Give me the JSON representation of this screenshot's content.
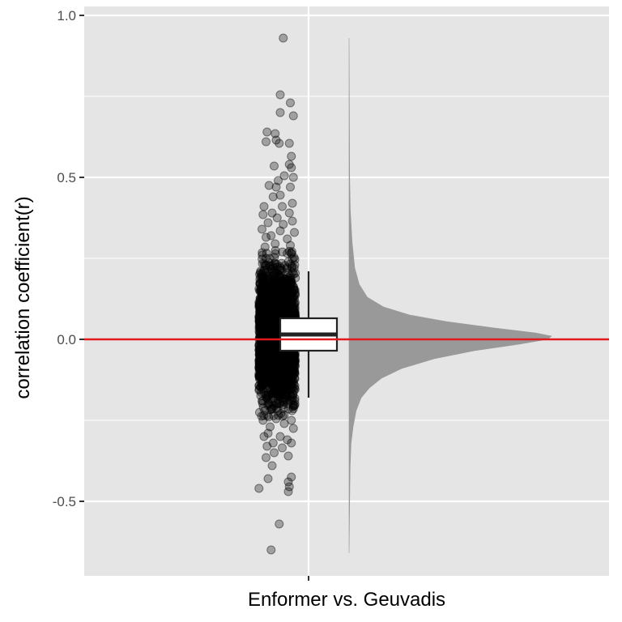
{
  "chart_data": {
    "type": "raincloud",
    "title": "",
    "xlabel": "Enformer vs. Geuvadis",
    "ylabel": "correlation coefficient(r)",
    "categories": [
      "Enformer vs. Geuvadis"
    ],
    "ylim": [
      -0.73,
      1.0
    ],
    "y_ticks": [
      -0.5,
      0.0,
      0.5,
      1.0
    ],
    "y_tick_labels": [
      "-0.5",
      "0.0",
      "0.5",
      "1.0"
    ],
    "grid": true,
    "legend": "none",
    "reference_line": {
      "y": 0.0,
      "color": "#e31a1c"
    },
    "boxplot": {
      "whisker_low": -0.18,
      "q1": -0.035,
      "median": 0.015,
      "q3": 0.065,
      "whisker_high": 0.21
    },
    "density_profile": [
      {
        "y": -0.66,
        "d": 0.0
      },
      {
        "y": -0.5,
        "d": 0.003
      },
      {
        "y": -0.4,
        "d": 0.005
      },
      {
        "y": -0.32,
        "d": 0.01
      },
      {
        "y": -0.27,
        "d": 0.02
      },
      {
        "y": -0.22,
        "d": 0.035
      },
      {
        "y": -0.18,
        "d": 0.06
      },
      {
        "y": -0.15,
        "d": 0.1
      },
      {
        "y": -0.12,
        "d": 0.16
      },
      {
        "y": -0.09,
        "d": 0.26
      },
      {
        "y": -0.06,
        "d": 0.42
      },
      {
        "y": -0.035,
        "d": 0.62
      },
      {
        "y": -0.015,
        "d": 0.84
      },
      {
        "y": 0.0,
        "d": 0.98
      },
      {
        "y": 0.01,
        "d": 1.0
      },
      {
        "y": 0.02,
        "d": 0.92
      },
      {
        "y": 0.035,
        "d": 0.72
      },
      {
        "y": 0.055,
        "d": 0.48
      },
      {
        "y": 0.075,
        "d": 0.3
      },
      {
        "y": 0.1,
        "d": 0.17
      },
      {
        "y": 0.13,
        "d": 0.09
      },
      {
        "y": 0.17,
        "d": 0.05
      },
      {
        "y": 0.22,
        "d": 0.028
      },
      {
        "y": 0.3,
        "d": 0.015
      },
      {
        "y": 0.4,
        "d": 0.006
      },
      {
        "y": 0.5,
        "d": 0.003
      },
      {
        "y": 0.65,
        "d": 0.002
      },
      {
        "y": 0.93,
        "d": 0.0
      }
    ],
    "points": [
      {
        "x": -0.125,
        "y": 0.93
      },
      {
        "x": -0.14,
        "y": 0.755
      },
      {
        "x": -0.09,
        "y": 0.73
      },
      {
        "x": -0.14,
        "y": 0.7
      },
      {
        "x": -0.075,
        "y": 0.69
      },
      {
        "x": -0.205,
        "y": 0.64
      },
      {
        "x": -0.165,
        "y": 0.635
      },
      {
        "x": -0.21,
        "y": 0.61
      },
      {
        "x": -0.16,
        "y": 0.615
      },
      {
        "x": -0.145,
        "y": 0.605
      },
      {
        "x": -0.095,
        "y": 0.605
      },
      {
        "x": -0.085,
        "y": 0.565
      },
      {
        "x": -0.095,
        "y": 0.54
      },
      {
        "x": -0.17,
        "y": 0.535
      },
      {
        "x": -0.085,
        "y": 0.53
      },
      {
        "x": -0.12,
        "y": 0.505
      },
      {
        "x": -0.075,
        "y": 0.5
      },
      {
        "x": -0.15,
        "y": 0.49
      },
      {
        "x": -0.195,
        "y": 0.475
      },
      {
        "x": -0.16,
        "y": 0.47
      },
      {
        "x": -0.175,
        "y": 0.44
      },
      {
        "x": -0.09,
        "y": 0.47
      },
      {
        "x": -0.14,
        "y": 0.445
      },
      {
        "x": -0.22,
        "y": 0.41
      },
      {
        "x": -0.13,
        "y": 0.41
      },
      {
        "x": -0.08,
        "y": 0.42
      },
      {
        "x": -0.225,
        "y": 0.385
      },
      {
        "x": -0.18,
        "y": 0.39
      },
      {
        "x": -0.095,
        "y": 0.39
      },
      {
        "x": -0.155,
        "y": 0.375
      },
      {
        "x": -0.2,
        "y": 0.36
      },
      {
        "x": -0.08,
        "y": 0.365
      },
      {
        "x": -0.125,
        "y": 0.355
      },
      {
        "x": -0.23,
        "y": 0.34
      },
      {
        "x": -0.21,
        "y": 0.315
      },
      {
        "x": -0.14,
        "y": 0.335
      },
      {
        "x": -0.07,
        "y": 0.33
      },
      {
        "x": -0.185,
        "y": 0.32
      },
      {
        "x": -0.105,
        "y": 0.31
      },
      {
        "x": -0.165,
        "y": 0.295
      },
      {
        "x": -0.215,
        "y": 0.285
      },
      {
        "x": -0.09,
        "y": 0.29
      },
      {
        "x": -0.12,
        "y": -0.26
      },
      {
        "x": -0.225,
        "y": -0.25
      },
      {
        "x": -0.16,
        "y": -0.245
      },
      {
        "x": -0.085,
        "y": -0.25
      },
      {
        "x": -0.19,
        "y": -0.27
      },
      {
        "x": -0.075,
        "y": -0.275
      },
      {
        "x": -0.2,
        "y": -0.29
      },
      {
        "x": -0.14,
        "y": -0.3
      },
      {
        "x": -0.22,
        "y": -0.3
      },
      {
        "x": -0.105,
        "y": -0.31
      },
      {
        "x": -0.175,
        "y": -0.32
      },
      {
        "x": -0.205,
        "y": -0.33
      },
      {
        "x": -0.085,
        "y": -0.32
      },
      {
        "x": -0.13,
        "y": -0.335
      },
      {
        "x": -0.17,
        "y": -0.35
      },
      {
        "x": -0.21,
        "y": -0.365
      },
      {
        "x": -0.1,
        "y": -0.36
      },
      {
        "x": -0.18,
        "y": -0.39
      },
      {
        "x": -0.245,
        "y": -0.46
      },
      {
        "x": -0.2,
        "y": -0.43
      },
      {
        "x": -0.085,
        "y": -0.425
      },
      {
        "x": -0.1,
        "y": -0.44
      },
      {
        "x": -0.095,
        "y": -0.455
      },
      {
        "x": -0.1,
        "y": -0.47
      },
      {
        "x": -0.145,
        "y": -0.57
      },
      {
        "x": -0.185,
        "y": -0.65
      }
    ],
    "bulk_points": {
      "count": 2600,
      "x_min": -0.245,
      "x_max": -0.065,
      "y_mean": 0.015,
      "y_sd": 0.095,
      "seed": 7
    },
    "point_style": {
      "fill": "#000000",
      "fill_opacity": 0.3,
      "stroke": "#000000",
      "stroke_opacity": 0.45
    },
    "colors": {
      "panel_background": "#e5e5e5",
      "gridline": "#ffffff",
      "density_fill": "#999999",
      "box_stroke": "#222222",
      "box_fill": "#ffffff"
    }
  }
}
